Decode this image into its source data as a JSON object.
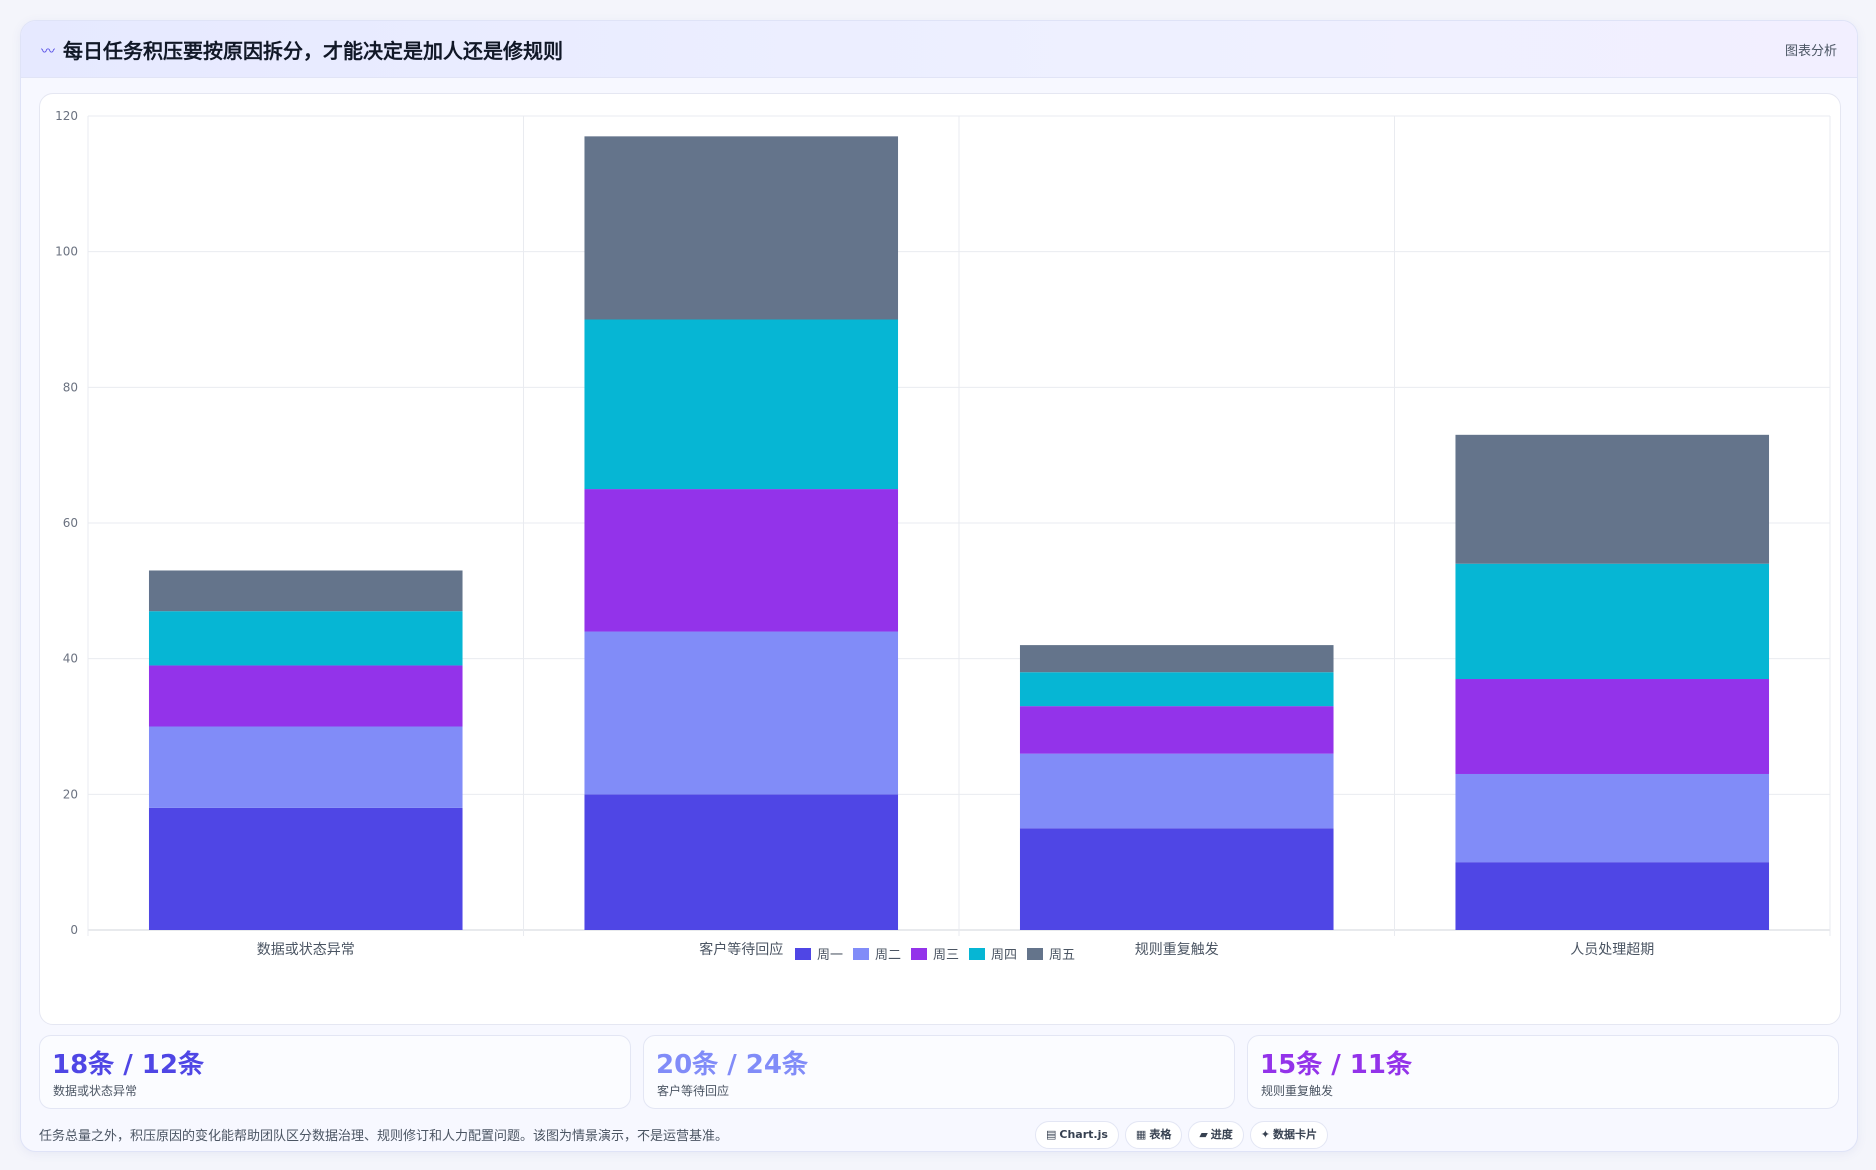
{
  "header": {
    "icon": "wave-icon",
    "title": "每日任务积压要按原因拆分，才能决定是加人还是修规则",
    "tag": "图表分析"
  },
  "chart_data": {
    "type": "bar",
    "stacked": true,
    "categories": [
      "数据或状态异常",
      "客户等待回应",
      "规则重复触发",
      "人员处理超期"
    ],
    "series": [
      {
        "name": "周一",
        "color": "#4f46e5",
        "values": [
          18,
          20,
          15,
          10
        ]
      },
      {
        "name": "周二",
        "color": "#818cf8",
        "values": [
          12,
          24,
          11,
          13
        ]
      },
      {
        "name": "周三",
        "color": "#9333ea",
        "values": [
          9,
          21,
          7,
          14
        ]
      },
      {
        "name": "周四",
        "color": "#06b6d4",
        "values": [
          8,
          25,
          5,
          17
        ]
      },
      {
        "name": "周五",
        "color": "#64748b",
        "values": [
          6,
          27,
          4,
          19
        ]
      }
    ],
    "ylim": [
      0,
      120
    ],
    "yticks": [
      0,
      20,
      40,
      60,
      80,
      100,
      120
    ],
    "grid": true,
    "legend_position": "bottom"
  },
  "stats": [
    {
      "value": "18条 / 12条",
      "label": "数据或状态异常",
      "color": "#4f46e5"
    },
    {
      "value": "20条 / 24条",
      "label": "客户等待回应",
      "color": "#818cf8"
    },
    {
      "value": "15条 / 11条",
      "label": "规则重复触发",
      "color": "#9333ea"
    }
  ],
  "footnote": "任务总量之外，积压原因的变化能帮助团队区分数据治理、规则修订和人力配置问题。该图为情景演示，不是运营基准。",
  "pills": [
    {
      "icon": "chart-icon",
      "glyph": "▤",
      "label": "Chart.js"
    },
    {
      "icon": "table-icon",
      "glyph": "▦",
      "label": "表格"
    },
    {
      "icon": "progress-icon",
      "glyph": "▰",
      "label": "进度"
    },
    {
      "icon": "sparkle-icon",
      "glyph": "✦",
      "label": "数据卡片"
    }
  ]
}
